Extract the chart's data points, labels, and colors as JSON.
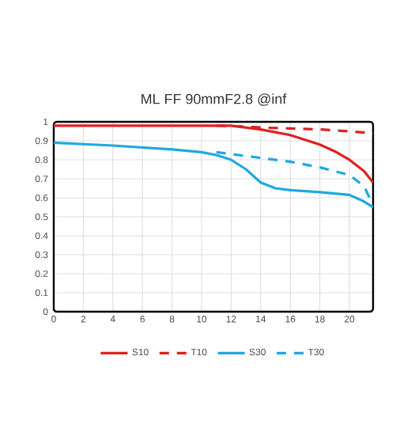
{
  "chart_data": {
    "type": "line",
    "title": "ML FF 90mmF2.8 @inf",
    "xlim": [
      0,
      21.6
    ],
    "ylim": [
      0,
      1
    ],
    "xticks": [
      0,
      2,
      4,
      6,
      8,
      10,
      12,
      14,
      16,
      18,
      20
    ],
    "yticks": [
      0,
      0.1,
      0.2,
      0.3,
      0.4,
      0.5,
      0.6,
      0.7,
      0.8,
      0.9,
      1
    ],
    "grid": true,
    "legend": "bottom",
    "marker": "none",
    "series": [
      {
        "name": "S10",
        "color": "#e02020",
        "line_style": "solid",
        "x": [
          0,
          4,
          8,
          12,
          13,
          14,
          15,
          16,
          17,
          18,
          19,
          20,
          21,
          21.6
        ],
        "values": [
          0.98,
          0.98,
          0.98,
          0.98,
          0.97,
          0.96,
          0.945,
          0.93,
          0.905,
          0.88,
          0.845,
          0.8,
          0.74,
          0.68
        ]
      },
      {
        "name": "T10",
        "color": "#e02020",
        "line_style": "dashed",
        "x": [
          11,
          13,
          14,
          16,
          18,
          20,
          21.6
        ],
        "values": [
          0.98,
          0.975,
          0.97,
          0.965,
          0.96,
          0.95,
          0.94
        ]
      },
      {
        "name": "S30",
        "color": "#1ea8e0",
        "line_style": "solid",
        "x": [
          0,
          4,
          8,
          10,
          11,
          12,
          13,
          14,
          15,
          16,
          18,
          20,
          21,
          21.6
        ],
        "values": [
          0.89,
          0.875,
          0.855,
          0.84,
          0.825,
          0.8,
          0.75,
          0.68,
          0.65,
          0.64,
          0.63,
          0.615,
          0.58,
          0.55
        ]
      },
      {
        "name": "T30",
        "color": "#1ea8e0",
        "line_style": "dashed",
        "x": [
          11,
          12,
          14,
          16,
          18,
          20,
          21,
          21.6
        ],
        "values": [
          0.84,
          0.83,
          0.81,
          0.79,
          0.76,
          0.72,
          0.66,
          0.56
        ]
      }
    ]
  }
}
